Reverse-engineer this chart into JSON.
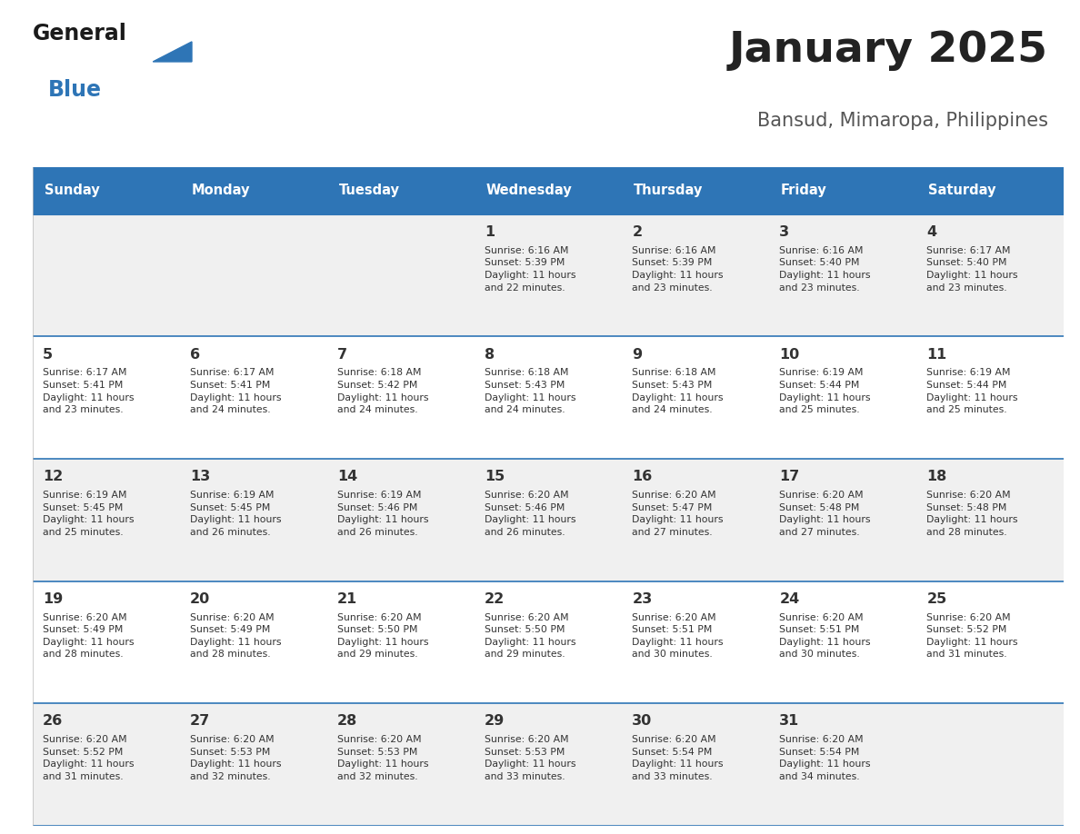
{
  "title": "January 2025",
  "subtitle": "Bansud, Mimaropa, Philippines",
  "days_of_week": [
    "Sunday",
    "Monday",
    "Tuesday",
    "Wednesday",
    "Thursday",
    "Friday",
    "Saturday"
  ],
  "header_bg": "#2E75B6",
  "header_text_color": "#FFFFFF",
  "cell_bg_odd": "#F0F0F0",
  "cell_bg_even": "#FFFFFF",
  "cell_border_color": "#2E75B6",
  "day_num_color": "#333333",
  "info_color": "#333333",
  "title_color": "#222222",
  "subtitle_color": "#555555",
  "generalblue_black": "#1A1A1A",
  "generalblue_color": "#2E75B6",
  "calendar": [
    [
      {
        "day": null,
        "sunrise": null,
        "sunset": null,
        "daylight": null
      },
      {
        "day": null,
        "sunrise": null,
        "sunset": null,
        "daylight": null
      },
      {
        "day": null,
        "sunrise": null,
        "sunset": null,
        "daylight": null
      },
      {
        "day": 1,
        "sunrise": "6:16 AM",
        "sunset": "5:39 PM",
        "daylight": "11 hours\nand 22 minutes."
      },
      {
        "day": 2,
        "sunrise": "6:16 AM",
        "sunset": "5:39 PM",
        "daylight": "11 hours\nand 23 minutes."
      },
      {
        "day": 3,
        "sunrise": "6:16 AM",
        "sunset": "5:40 PM",
        "daylight": "11 hours\nand 23 minutes."
      },
      {
        "day": 4,
        "sunrise": "6:17 AM",
        "sunset": "5:40 PM",
        "daylight": "11 hours\nand 23 minutes."
      }
    ],
    [
      {
        "day": 5,
        "sunrise": "6:17 AM",
        "sunset": "5:41 PM",
        "daylight": "11 hours\nand 23 minutes."
      },
      {
        "day": 6,
        "sunrise": "6:17 AM",
        "sunset": "5:41 PM",
        "daylight": "11 hours\nand 24 minutes."
      },
      {
        "day": 7,
        "sunrise": "6:18 AM",
        "sunset": "5:42 PM",
        "daylight": "11 hours\nand 24 minutes."
      },
      {
        "day": 8,
        "sunrise": "6:18 AM",
        "sunset": "5:43 PM",
        "daylight": "11 hours\nand 24 minutes."
      },
      {
        "day": 9,
        "sunrise": "6:18 AM",
        "sunset": "5:43 PM",
        "daylight": "11 hours\nand 24 minutes."
      },
      {
        "day": 10,
        "sunrise": "6:19 AM",
        "sunset": "5:44 PM",
        "daylight": "11 hours\nand 25 minutes."
      },
      {
        "day": 11,
        "sunrise": "6:19 AM",
        "sunset": "5:44 PM",
        "daylight": "11 hours\nand 25 minutes."
      }
    ],
    [
      {
        "day": 12,
        "sunrise": "6:19 AM",
        "sunset": "5:45 PM",
        "daylight": "11 hours\nand 25 minutes."
      },
      {
        "day": 13,
        "sunrise": "6:19 AM",
        "sunset": "5:45 PM",
        "daylight": "11 hours\nand 26 minutes."
      },
      {
        "day": 14,
        "sunrise": "6:19 AM",
        "sunset": "5:46 PM",
        "daylight": "11 hours\nand 26 minutes."
      },
      {
        "day": 15,
        "sunrise": "6:20 AM",
        "sunset": "5:46 PM",
        "daylight": "11 hours\nand 26 minutes."
      },
      {
        "day": 16,
        "sunrise": "6:20 AM",
        "sunset": "5:47 PM",
        "daylight": "11 hours\nand 27 minutes."
      },
      {
        "day": 17,
        "sunrise": "6:20 AM",
        "sunset": "5:48 PM",
        "daylight": "11 hours\nand 27 minutes."
      },
      {
        "day": 18,
        "sunrise": "6:20 AM",
        "sunset": "5:48 PM",
        "daylight": "11 hours\nand 28 minutes."
      }
    ],
    [
      {
        "day": 19,
        "sunrise": "6:20 AM",
        "sunset": "5:49 PM",
        "daylight": "11 hours\nand 28 minutes."
      },
      {
        "day": 20,
        "sunrise": "6:20 AM",
        "sunset": "5:49 PM",
        "daylight": "11 hours\nand 28 minutes."
      },
      {
        "day": 21,
        "sunrise": "6:20 AM",
        "sunset": "5:50 PM",
        "daylight": "11 hours\nand 29 minutes."
      },
      {
        "day": 22,
        "sunrise": "6:20 AM",
        "sunset": "5:50 PM",
        "daylight": "11 hours\nand 29 minutes."
      },
      {
        "day": 23,
        "sunrise": "6:20 AM",
        "sunset": "5:51 PM",
        "daylight": "11 hours\nand 30 minutes."
      },
      {
        "day": 24,
        "sunrise": "6:20 AM",
        "sunset": "5:51 PM",
        "daylight": "11 hours\nand 30 minutes."
      },
      {
        "day": 25,
        "sunrise": "6:20 AM",
        "sunset": "5:52 PM",
        "daylight": "11 hours\nand 31 minutes."
      }
    ],
    [
      {
        "day": 26,
        "sunrise": "6:20 AM",
        "sunset": "5:52 PM",
        "daylight": "11 hours\nand 31 minutes."
      },
      {
        "day": 27,
        "sunrise": "6:20 AM",
        "sunset": "5:53 PM",
        "daylight": "11 hours\nand 32 minutes."
      },
      {
        "day": 28,
        "sunrise": "6:20 AM",
        "sunset": "5:53 PM",
        "daylight": "11 hours\nand 32 minutes."
      },
      {
        "day": 29,
        "sunrise": "6:20 AM",
        "sunset": "5:53 PM",
        "daylight": "11 hours\nand 33 minutes."
      },
      {
        "day": 30,
        "sunrise": "6:20 AM",
        "sunset": "5:54 PM",
        "daylight": "11 hours\nand 33 minutes."
      },
      {
        "day": 31,
        "sunrise": "6:20 AM",
        "sunset": "5:54 PM",
        "daylight": "11 hours\nand 34 minutes."
      },
      {
        "day": null,
        "sunrise": null,
        "sunset": null,
        "daylight": null
      }
    ]
  ]
}
